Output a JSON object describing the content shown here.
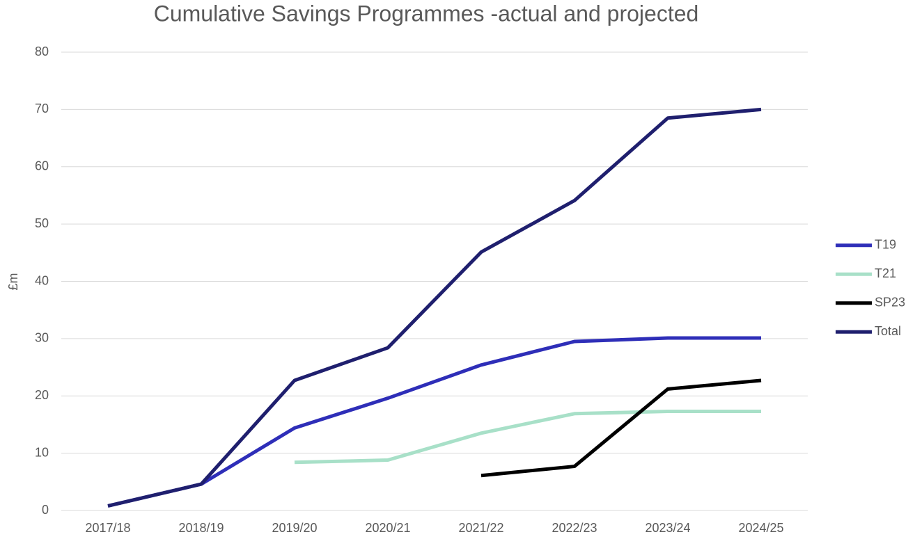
{
  "chart_data": {
    "type": "line",
    "title": "Cumulative Savings Programmes -actual and projected",
    "y_label": "£m",
    "categories": [
      "2017/18",
      "2018/19",
      "2019/20",
      "2020/21",
      "2021/22",
      "2022/23",
      "2023/24",
      "2024/25"
    ],
    "series": [
      {
        "name": "T19",
        "color": "#2e2eb8",
        "values": [
          0.8,
          4.6,
          14.4,
          19.6,
          25.4,
          29.5,
          30.1,
          30.1
        ]
      },
      {
        "name": "T21",
        "color": "#a8e0c8",
        "values": [
          null,
          null,
          8.4,
          8.8,
          13.5,
          16.9,
          17.3,
          17.3
        ]
      },
      {
        "name": "SP23",
        "color": "#000000",
        "values": [
          null,
          null,
          null,
          null,
          6.1,
          7.7,
          21.2,
          22.7
        ]
      },
      {
        "name": "Total",
        "color": "#1f1f6e",
        "values": [
          0.8,
          4.6,
          22.7,
          28.4,
          45.1,
          54.1,
          68.5,
          70
        ]
      }
    ],
    "ylim": [
      0,
      80
    ],
    "yticks": [
      0,
      10,
      20,
      30,
      40,
      50,
      60,
      70,
      80
    ],
    "grid": true,
    "legend": "right"
  }
}
